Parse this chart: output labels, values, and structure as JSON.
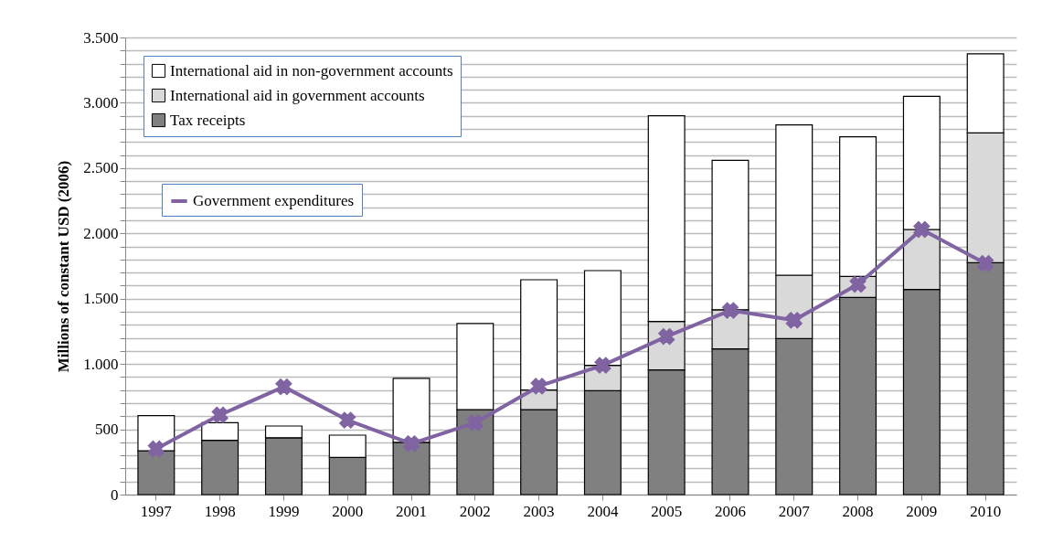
{
  "chart_data": {
    "type": "bar",
    "ylabel": "Millions of constant USD  (2006)",
    "categories": [
      "1997",
      "1998",
      "1999",
      "2000",
      "2001",
      "2002",
      "2003",
      "2004",
      "2005",
      "2006",
      "2007",
      "2008",
      "2009",
      "2010"
    ],
    "stacked": true,
    "legend": "top left",
    "grid": "y",
    "marker": "cross",
    "ylim": [
      0,
      3500
    ],
    "yticks": [
      0,
      {
        "value": 100,
        "label": null
      },
      {
        "value": 200,
        "label": null
      },
      {
        "value": 300,
        "label": null
      },
      {
        "value": 400,
        "label": null
      },
      500,
      {
        "value": 600,
        "label": null
      },
      {
        "value": 700,
        "label": null
      },
      {
        "value": 800,
        "label": null
      },
      {
        "value": 900,
        "label": null
      },
      {
        "value": 1000,
        "label": "1.000"
      },
      {
        "value": 1100,
        "label": null
      },
      {
        "value": 1200,
        "label": null
      },
      {
        "value": 1300,
        "label": null
      },
      {
        "value": 1400,
        "label": null
      },
      {
        "value": 1500,
        "label": "1.500"
      },
      {
        "value": 1600,
        "label": null
      },
      {
        "value": 1700,
        "label": null
      },
      {
        "value": 1800,
        "label": null
      },
      {
        "value": 1900,
        "label": null
      },
      {
        "value": 2000,
        "label": "2.000"
      },
      {
        "value": 2100,
        "label": null
      },
      {
        "value": 2200,
        "label": null
      },
      {
        "value": 2300,
        "label": null
      },
      {
        "value": 2400,
        "label": null
      },
      {
        "value": 2500,
        "label": "2.500"
      },
      {
        "value": 2600,
        "label": null
      },
      {
        "value": 2700,
        "label": null
      },
      {
        "value": 2800,
        "label": null
      },
      {
        "value": 2900,
        "label": null
      },
      {
        "value": 3000,
        "label": "3.000"
      },
      {
        "value": 3100,
        "label": null
      },
      {
        "value": 3200,
        "label": null
      },
      {
        "value": 3300,
        "label": null
      },
      {
        "value": 3400,
        "label": null
      },
      {
        "value": 3500,
        "label": "3.500"
      }
    ],
    "series": [
      {
        "name": "Tax receipts",
        "color": "#808080",
        "values": [
          335,
          415,
          435,
          285,
          400,
          650,
          650,
          795,
          955,
          1115,
          1195,
          1510,
          1570,
          1775
        ]
      },
      {
        "name": "International aid in government accounts",
        "color": "#d9d9d9",
        "values": [
          0,
          0,
          0,
          0,
          0,
          0,
          150,
          195,
          370,
          300,
          485,
          160,
          460,
          995
        ]
      },
      {
        "name": "International aid in non-government accounts",
        "color": "#ffffff",
        "values": [
          270,
          135,
          90,
          170,
          490,
          660,
          845,
          725,
          1575,
          1145,
          1150,
          1070,
          1020,
          605
        ]
      },
      {
        "name": "Government expenditures",
        "type": "line",
        "color": "#8064a2",
        "values": [
          350,
          610,
          825,
          570,
          390,
          550,
          830,
          990,
          1210,
          1410,
          1335,
          1610,
          2030,
          1770
        ]
      }
    ]
  }
}
